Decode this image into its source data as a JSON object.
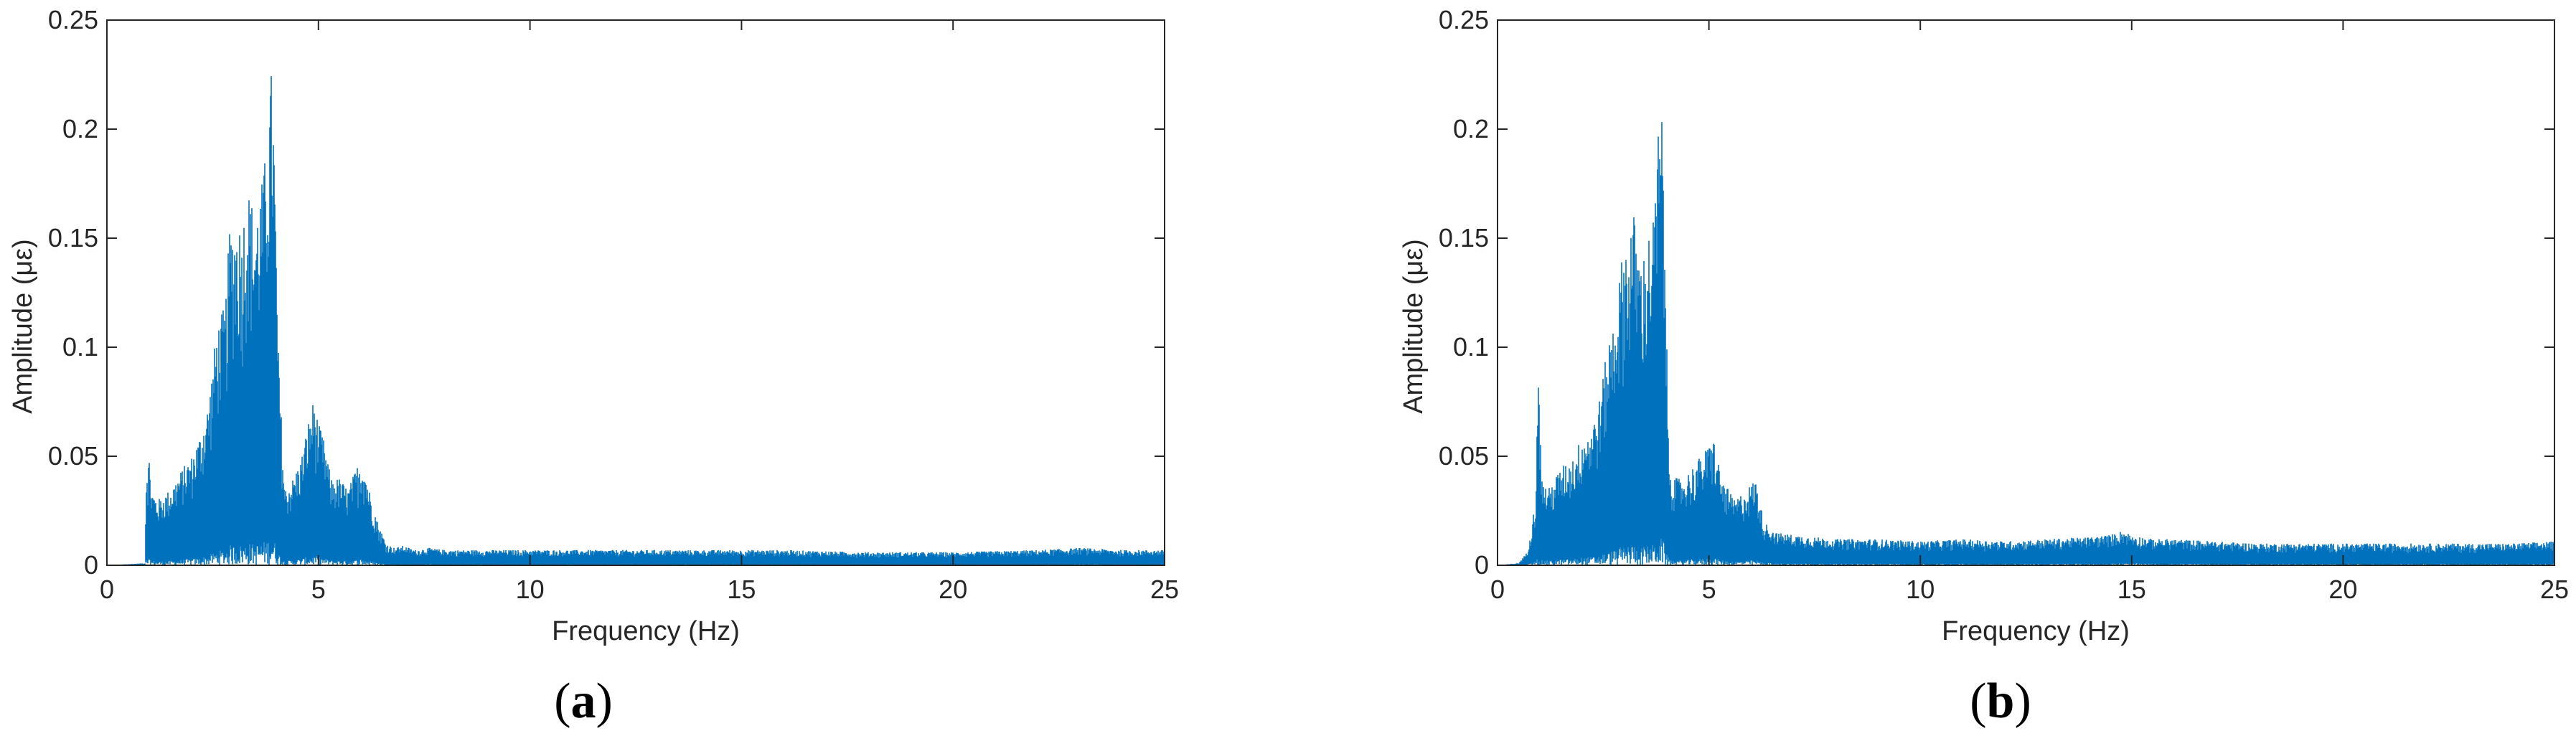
{
  "chart_data": [
    {
      "type": "line",
      "panel_label": "a",
      "xlabel": "Frequency (Hz)",
      "ylabel": "Amplitude (με)",
      "xlim": [
        0,
        25
      ],
      "ylim": [
        0,
        0.25
      ],
      "x_ticks": [
        0,
        5,
        10,
        15,
        20,
        25
      ],
      "y_ticks": [
        0,
        0.05,
        0.1,
        0.15,
        0.2,
        0.25
      ],
      "y_tick_labels": [
        "0",
        "0.05",
        "0.1",
        "0.15",
        "0.2",
        "0.25"
      ],
      "grid": false,
      "series_color": "#0072BD",
      "envelope": {
        "x": [
          0,
          0.9,
          0.93,
          1.0,
          1.05,
          1.2,
          1.5,
          1.8,
          2.0,
          2.2,
          2.4,
          2.6,
          2.8,
          2.9,
          3.0,
          3.1,
          3.2,
          3.3,
          3.4,
          3.5,
          3.6,
          3.7,
          3.8,
          3.9,
          3.95,
          4.05,
          4.2,
          4.4,
          4.6,
          4.8,
          4.9,
          5.0,
          5.1,
          5.3,
          5.5,
          5.7,
          5.9,
          6.0,
          6.1,
          6.2,
          6.4,
          6.6,
          6.8,
          7.0,
          7.3,
          7.6,
          8.0,
          9.0,
          10.0,
          12.0,
          14.0,
          16.0,
          18.0,
          20.0,
          22.0,
          23.0,
          24.0,
          25.0
        ],
        "y": [
          0,
          0.001,
          0.045,
          0.05,
          0.035,
          0.03,
          0.035,
          0.045,
          0.05,
          0.06,
          0.075,
          0.11,
          0.12,
          0.155,
          0.158,
          0.16,
          0.155,
          0.175,
          0.17,
          0.16,
          0.17,
          0.18,
          0.2,
          0.232,
          0.2,
          0.1,
          0.035,
          0.04,
          0.05,
          0.07,
          0.077,
          0.065,
          0.06,
          0.04,
          0.04,
          0.035,
          0.045,
          0.05,
          0.045,
          0.035,
          0.02,
          0.01,
          0.008,
          0.009,
          0.007,
          0.008,
          0.007,
          0.007,
          0.007,
          0.007,
          0.007,
          0.007,
          0.006,
          0.006,
          0.007,
          0.008,
          0.007,
          0.007
        ]
      }
    },
    {
      "type": "line",
      "panel_label": "b",
      "xlabel": "Frequency (Hz)",
      "ylabel": "Amplitude (με)",
      "xlim": [
        0,
        25
      ],
      "ylim": [
        0,
        0.25
      ],
      "x_ticks": [
        0,
        5,
        10,
        15,
        20,
        25
      ],
      "y_ticks": [
        0,
        0.05,
        0.1,
        0.15,
        0.2,
        0.25
      ],
      "y_tick_labels": [
        "0",
        "0.05",
        "0.1",
        "0.15",
        "0.2",
        "0.25"
      ],
      "grid": false,
      "series_color": "#0072BD",
      "envelope": {
        "x": [
          0,
          0.5,
          0.7,
          0.9,
          0.95,
          1.0,
          1.05,
          1.2,
          1.5,
          1.8,
          2.0,
          2.2,
          2.4,
          2.6,
          2.8,
          3.0,
          3.1,
          3.2,
          3.3,
          3.4,
          3.5,
          3.6,
          3.7,
          3.8,
          3.9,
          3.95,
          4.05,
          4.2,
          4.4,
          4.6,
          4.8,
          5.0,
          5.1,
          5.3,
          5.6,
          5.9,
          6.1,
          6.3,
          6.6,
          7.0,
          7.5,
          8.0,
          9.0,
          10.0,
          11.0,
          12.0,
          13.0,
          14.0,
          14.5,
          14.8,
          15.0,
          15.5,
          16.0,
          17.0,
          18.0,
          20.0,
          22.0,
          24.0,
          25.0
        ],
        "y": [
          0,
          0.001,
          0.006,
          0.03,
          0.091,
          0.07,
          0.04,
          0.035,
          0.045,
          0.05,
          0.06,
          0.063,
          0.075,
          0.1,
          0.12,
          0.15,
          0.148,
          0.165,
          0.15,
          0.14,
          0.145,
          0.155,
          0.16,
          0.2,
          0.208,
          0.16,
          0.05,
          0.04,
          0.04,
          0.045,
          0.05,
          0.055,
          0.06,
          0.04,
          0.03,
          0.035,
          0.04,
          0.02,
          0.015,
          0.014,
          0.013,
          0.012,
          0.012,
          0.011,
          0.012,
          0.011,
          0.012,
          0.013,
          0.014,
          0.016,
          0.014,
          0.012,
          0.012,
          0.011,
          0.01,
          0.01,
          0.01,
          0.01,
          0.011
        ]
      }
    }
  ]
}
